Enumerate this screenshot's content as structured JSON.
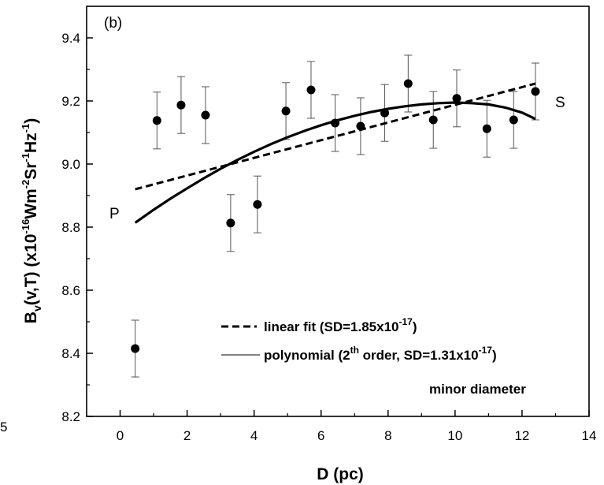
{
  "chart_data": {
    "type": "scatter",
    "panel_label": "(b)",
    "xlabel": "D (pc)",
    "ylabel_parts": {
      "b": "B",
      "sub_v": "v",
      "args": "(v,T) (x10",
      "exp1": "-16",
      "unit1": "Wm",
      "exp2": "-2",
      "unit2": "Sr",
      "exp3": "-1",
      "unit3": "Hz",
      "exp4": "-1",
      "close": ")"
    },
    "xlim": [
      -1,
      14
    ],
    "ylim": [
      8.2,
      9.5
    ],
    "x_ticks": [
      0,
      2,
      4,
      6,
      8,
      10,
      12,
      14
    ],
    "y_ticks": [
      8.2,
      8.4,
      8.6,
      8.8,
      9.0,
      9.2,
      9.4
    ],
    "y_tick_labels": [
      "8.2",
      "8.4",
      "8.6",
      "8.8",
      "9.0",
      "9.2",
      "9.4"
    ],
    "points": [
      {
        "x": 0.45,
        "y": 8.415,
        "err": 0.09
      },
      {
        "x": 1.1,
        "y": 9.138,
        "err": 0.09
      },
      {
        "x": 1.82,
        "y": 9.187,
        "err": 0.09
      },
      {
        "x": 2.55,
        "y": 9.155,
        "err": 0.09
      },
      {
        "x": 3.3,
        "y": 8.813,
        "err": 0.09
      },
      {
        "x": 4.1,
        "y": 8.872,
        "err": 0.09
      },
      {
        "x": 4.95,
        "y": 9.168,
        "err": 0.09
      },
      {
        "x": 5.7,
        "y": 9.235,
        "err": 0.09
      },
      {
        "x": 6.42,
        "y": 9.13,
        "err": 0.09
      },
      {
        "x": 7.18,
        "y": 9.12,
        "err": 0.09
      },
      {
        "x": 7.9,
        "y": 9.162,
        "err": 0.09
      },
      {
        "x": 8.6,
        "y": 9.255,
        "err": 0.09
      },
      {
        "x": 9.35,
        "y": 9.14,
        "err": 0.09
      },
      {
        "x": 10.05,
        "y": 9.208,
        "err": 0.09
      },
      {
        "x": 10.95,
        "y": 9.112,
        "err": 0.09
      },
      {
        "x": 11.75,
        "y": 9.14,
        "err": 0.09
      },
      {
        "x": 12.4,
        "y": 9.23,
        "err": 0.09
      }
    ],
    "linear_fit": {
      "x": [
        0.45,
        12.4
      ],
      "y": [
        8.92,
        9.255
      ]
    },
    "poly_fit": {
      "x": [
        0.45,
        1.0,
        1.5,
        2.0,
        2.5,
        3.0,
        3.5,
        4.0,
        4.5,
        5.0,
        5.5,
        6.0,
        6.5,
        7.0,
        7.5,
        8.0,
        8.5,
        9.0,
        9.5,
        10.0,
        10.5,
        11.0,
        11.5,
        12.0,
        12.4
      ],
      "y": [
        8.814,
        8.855,
        8.89,
        8.923,
        8.955,
        8.985,
        9.013,
        9.039,
        9.063,
        9.085,
        9.105,
        9.123,
        9.139,
        9.153,
        9.165,
        9.175,
        9.183,
        9.189,
        9.193,
        9.195,
        9.193,
        9.189,
        9.179,
        9.163,
        9.143
      ]
    },
    "annotations": {
      "left_marker": "P",
      "right_marker": "S"
    },
    "legend": {
      "linear": {
        "prefix": "linear fit (SD=1.85x10",
        "exp": "-17",
        "suffix": ")"
      },
      "poly": {
        "prefix": "polynomial (2",
        "sup": "th",
        "mid": " order, SD=1.31x10",
        "exp": "-17",
        "suffix": ")"
      },
      "note": "minor diameter",
      "placement": "bottom-right"
    },
    "stray_text": "5",
    "grid": false
  }
}
